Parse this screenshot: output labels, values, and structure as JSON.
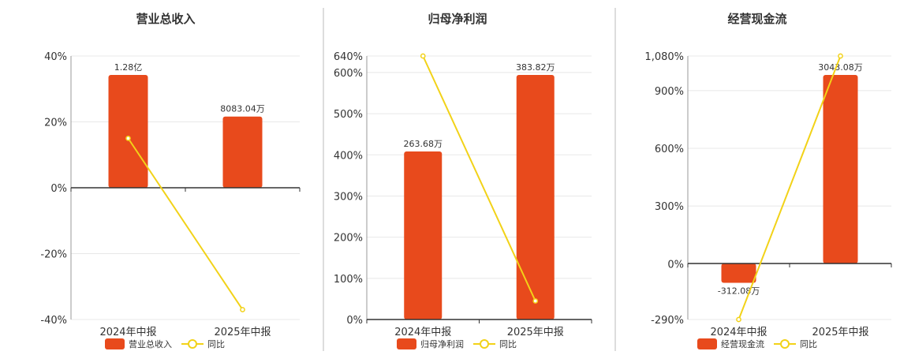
{
  "colors": {
    "bar": "#E84A1C",
    "line": "#F2D218",
    "grid": "#e8e8e8",
    "axis": "#333333",
    "divider": "#bbbbbb"
  },
  "chart_data": [
    {
      "type": "bar",
      "title": "营业总收入",
      "categories": [
        "2024年中报",
        "2025年中报"
      ],
      "bar_series": {
        "name": "营业总收入",
        "values": [
          12800,
          8083.04
        ],
        "labels": [
          "1.28亿",
          "8083.04万"
        ],
        "unit": "万"
      },
      "line_series": {
        "name": "同比",
        "values": [
          15,
          -37
        ]
      },
      "y_axis": {
        "ticks": [
          "40%",
          "20%",
          "0%",
          "-20%",
          "-40%"
        ],
        "tick_values": [
          40,
          20,
          0,
          -20,
          -40
        ],
        "range": [
          -40,
          40
        ],
        "unit": "%"
      },
      "legend": [
        "营业总收入",
        "同比"
      ],
      "legend_position": "bottom-center",
      "grid": true
    },
    {
      "type": "bar",
      "title": "归母净利润",
      "categories": [
        "2024年中报",
        "2025年中报"
      ],
      "bar_series": {
        "name": "归母净利润",
        "values": [
          263.68,
          383.82
        ],
        "labels": [
          "263.68万",
          "383.82万"
        ],
        "unit": "万"
      },
      "line_series": {
        "name": "同比",
        "values": [
          640,
          45
        ]
      },
      "y_axis": {
        "ticks": [
          "640%",
          "600%",
          "500%",
          "400%",
          "300%",
          "200%",
          "100%",
          "0%"
        ],
        "tick_values": [
          640,
          600,
          500,
          400,
          300,
          200,
          100,
          0
        ],
        "range": [
          0,
          640
        ],
        "unit": "%"
      },
      "legend": [
        "归母净利润",
        "同比"
      ],
      "legend_position": "bottom-center",
      "grid": true
    },
    {
      "type": "bar",
      "title": "经营现金流",
      "categories": [
        "2024年中报",
        "2025年中报"
      ],
      "bar_series": {
        "name": "经营现金流",
        "values": [
          -312.08,
          3043.08
        ],
        "labels": [
          "-312.08万",
          "3043.08万"
        ],
        "unit": "万"
      },
      "line_series": {
        "name": "同比",
        "values": [
          -290,
          1080
        ]
      },
      "y_axis": {
        "ticks": [
          "1,080%",
          "900%",
          "600%",
          "300%",
          "0%",
          "-290%"
        ],
        "tick_values": [
          1080,
          900,
          600,
          300,
          0,
          -290
        ],
        "range": [
          -290,
          1080
        ],
        "unit": "%"
      },
      "legend": [
        "经营现金流",
        "同比"
      ],
      "legend_position": "bottom-center",
      "grid": true
    }
  ]
}
